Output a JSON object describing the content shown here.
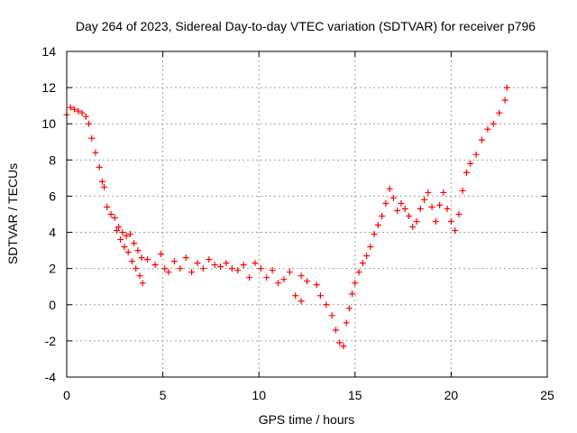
{
  "chart_data": {
    "type": "scatter",
    "title": "Day 264 of 2023, Sidereal Day-to-day VTEC variation (SDTVAR) for receiver p796",
    "xlabel": "GPS time / hours",
    "ylabel": "SDTVAR / TECUs",
    "xlim": [
      0,
      25
    ],
    "ylim": [
      -4,
      14
    ],
    "xticks": [
      0,
      5,
      10,
      15,
      20,
      25
    ],
    "yticks": [
      -4,
      -2,
      0,
      2,
      4,
      6,
      8,
      10,
      12,
      14
    ],
    "xtick_labels": [
      "0",
      "5",
      "10",
      "15",
      "20",
      "25"
    ],
    "ytick_labels": [
      "-4",
      "-2",
      "0",
      "2",
      "4",
      "6",
      "8",
      "10",
      "12",
      "14"
    ],
    "grid": true,
    "marker": "plus",
    "color": "#ff0000",
    "series": [
      {
        "name": "p796",
        "points": [
          [
            0.0,
            10.5
          ],
          [
            0.2,
            10.9
          ],
          [
            0.4,
            10.8
          ],
          [
            0.6,
            10.7
          ],
          [
            0.8,
            10.6
          ],
          [
            1.0,
            10.4
          ],
          [
            1.15,
            10.0
          ],
          [
            1.3,
            9.2
          ],
          [
            1.5,
            8.4
          ],
          [
            1.7,
            7.6
          ],
          [
            1.85,
            6.8
          ],
          [
            1.95,
            6.5
          ],
          [
            2.1,
            5.4
          ],
          [
            2.3,
            5.0
          ],
          [
            2.5,
            4.8
          ],
          [
            2.7,
            4.3
          ],
          [
            2.9,
            4.0
          ],
          [
            3.1,
            3.8
          ],
          [
            3.3,
            3.9
          ],
          [
            3.5,
            3.4
          ],
          [
            3.7,
            3.0
          ],
          [
            3.9,
            2.6
          ],
          [
            2.6,
            4.1
          ],
          [
            2.8,
            3.6
          ],
          [
            3.0,
            3.2
          ],
          [
            3.2,
            2.9
          ],
          [
            3.4,
            2.4
          ],
          [
            3.6,
            2.0
          ],
          [
            3.8,
            1.6
          ],
          [
            3.95,
            1.2
          ],
          [
            4.2,
            2.5
          ],
          [
            4.6,
            2.2
          ],
          [
            4.9,
            2.8
          ],
          [
            5.1,
            2.0
          ],
          [
            5.3,
            1.8
          ],
          [
            5.6,
            2.4
          ],
          [
            5.9,
            2.0
          ],
          [
            6.2,
            2.6
          ],
          [
            6.5,
            1.8
          ],
          [
            6.8,
            2.3
          ],
          [
            7.1,
            2.0
          ],
          [
            7.4,
            2.5
          ],
          [
            7.7,
            2.2
          ],
          [
            8.0,
            2.1
          ],
          [
            8.3,
            2.3
          ],
          [
            8.6,
            2.0
          ],
          [
            8.9,
            1.9
          ],
          [
            9.2,
            2.2
          ],
          [
            9.5,
            1.5
          ],
          [
            9.8,
            2.3
          ],
          [
            10.1,
            2.0
          ],
          [
            10.4,
            1.5
          ],
          [
            10.7,
            1.9
          ],
          [
            11.0,
            1.2
          ],
          [
            11.3,
            1.4
          ],
          [
            11.6,
            1.8
          ],
          [
            11.9,
            0.5
          ],
          [
            12.2,
            1.6
          ],
          [
            12.5,
            1.3
          ],
          [
            12.2,
            0.2
          ],
          [
            13.0,
            1.1
          ],
          [
            13.2,
            0.5
          ],
          [
            13.5,
            0.0
          ],
          [
            13.8,
            -0.6
          ],
          [
            14.0,
            -1.4
          ],
          [
            14.2,
            -2.1
          ],
          [
            14.4,
            -2.3
          ],
          [
            14.55,
            -1.0
          ],
          [
            14.7,
            -0.2
          ],
          [
            14.85,
            0.6
          ],
          [
            15.0,
            1.2
          ],
          [
            15.2,
            1.8
          ],
          [
            15.4,
            2.3
          ],
          [
            15.6,
            2.7
          ],
          [
            15.8,
            3.2
          ],
          [
            16.0,
            3.9
          ],
          [
            16.2,
            4.4
          ],
          [
            16.4,
            4.9
          ],
          [
            16.6,
            5.6
          ],
          [
            16.8,
            6.4
          ],
          [
            17.0,
            5.9
          ],
          [
            17.2,
            5.2
          ],
          [
            17.4,
            5.6
          ],
          [
            17.6,
            5.3
          ],
          [
            17.8,
            4.9
          ],
          [
            18.0,
            4.3
          ],
          [
            18.2,
            4.6
          ],
          [
            18.4,
            5.3
          ],
          [
            18.6,
            5.8
          ],
          [
            18.8,
            6.2
          ],
          [
            19.0,
            5.4
          ],
          [
            19.2,
            4.6
          ],
          [
            19.4,
            5.5
          ],
          [
            19.6,
            6.2
          ],
          [
            19.8,
            5.3
          ],
          [
            20.0,
            4.6
          ],
          [
            20.2,
            4.1
          ],
          [
            20.4,
            5.0
          ],
          [
            20.6,
            6.3
          ],
          [
            20.8,
            7.3
          ],
          [
            21.0,
            7.8
          ],
          [
            21.3,
            8.3
          ],
          [
            21.6,
            9.1
          ],
          [
            21.9,
            9.7
          ],
          [
            22.2,
            10.0
          ],
          [
            22.5,
            10.6
          ],
          [
            22.8,
            11.3
          ],
          [
            22.9,
            12.0
          ]
        ]
      }
    ]
  }
}
